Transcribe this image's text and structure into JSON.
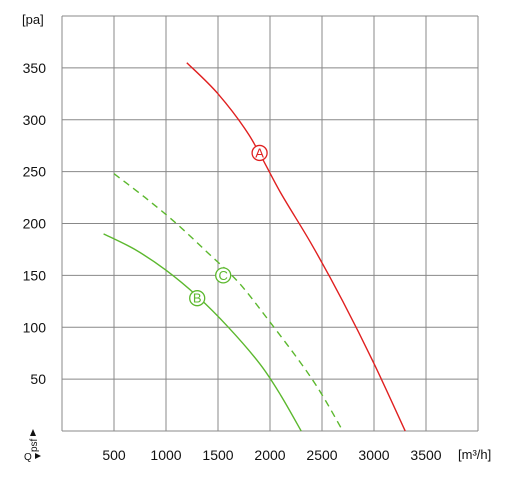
{
  "chart_data": {
    "type": "line",
    "ylabel": "[pa]",
    "xlabel": "[m³/h]",
    "axis_markers": {
      "y": "psf",
      "x": "Q"
    },
    "xlim": [
      0,
      4000
    ],
    "ylim": [
      0,
      400
    ],
    "x_ticks": [
      500,
      1000,
      1500,
      2000,
      2500,
      3000,
      3500
    ],
    "y_ticks": [
      50,
      100,
      150,
      200,
      250,
      300,
      350
    ],
    "grid": true,
    "series": [
      {
        "name": "A",
        "color": "#e02020",
        "dash": false,
        "points": [
          [
            1200,
            355
          ],
          [
            1500,
            325
          ],
          [
            1800,
            285
          ],
          [
            2100,
            230
          ],
          [
            2400,
            180
          ],
          [
            2700,
            125
          ],
          [
            3000,
            65
          ],
          [
            3300,
            0
          ]
        ],
        "label_at": [
          1900,
          268
        ]
      },
      {
        "name": "B",
        "color": "#5cb82e",
        "dash": false,
        "points": [
          [
            400,
            190
          ],
          [
            700,
            175
          ],
          [
            1000,
            155
          ],
          [
            1300,
            130
          ],
          [
            1600,
            100
          ],
          [
            1900,
            65
          ],
          [
            2100,
            35
          ],
          [
            2300,
            0
          ]
        ],
        "label_at": [
          1300,
          128
        ]
      },
      {
        "name": "C",
        "color": "#5cb82e",
        "dash": true,
        "points": [
          [
            500,
            248
          ],
          [
            800,
            225
          ],
          [
            1100,
            200
          ],
          [
            1400,
            172
          ],
          [
            1700,
            143
          ],
          [
            2000,
            105
          ],
          [
            2300,
            65
          ],
          [
            2500,
            35
          ],
          [
            2700,
            0
          ]
        ],
        "label_at": [
          1550,
          150
        ]
      }
    ]
  }
}
